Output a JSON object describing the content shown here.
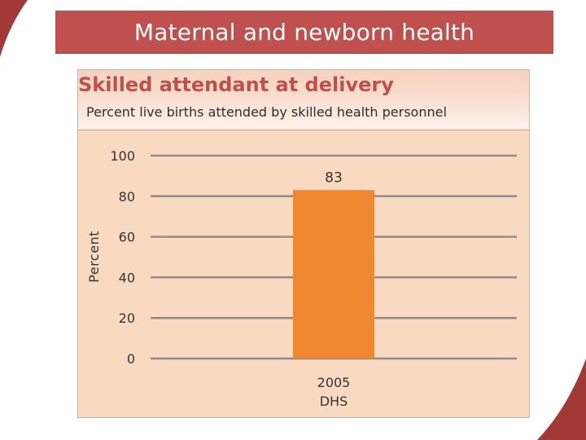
{
  "header": {
    "title": "Maternal and newborn health"
  },
  "chart_data": {
    "type": "bar",
    "title": "Skilled attendant at delivery",
    "subtitle": "Percent live births attended by skilled health personnel",
    "ylabel": "Percent",
    "ylim": [
      0,
      100
    ],
    "yticks": [
      0,
      20,
      40,
      60,
      80,
      100
    ],
    "categories": [
      [
        "2005",
        "DHS"
      ]
    ],
    "values": [
      83
    ],
    "data_labels": [
      "83"
    ],
    "grid": true,
    "colors": {
      "bar": "#f0882f",
      "gridline": "#8c8c8c",
      "panel": "#f9d9c0",
      "title": "#c0504d"
    }
  }
}
